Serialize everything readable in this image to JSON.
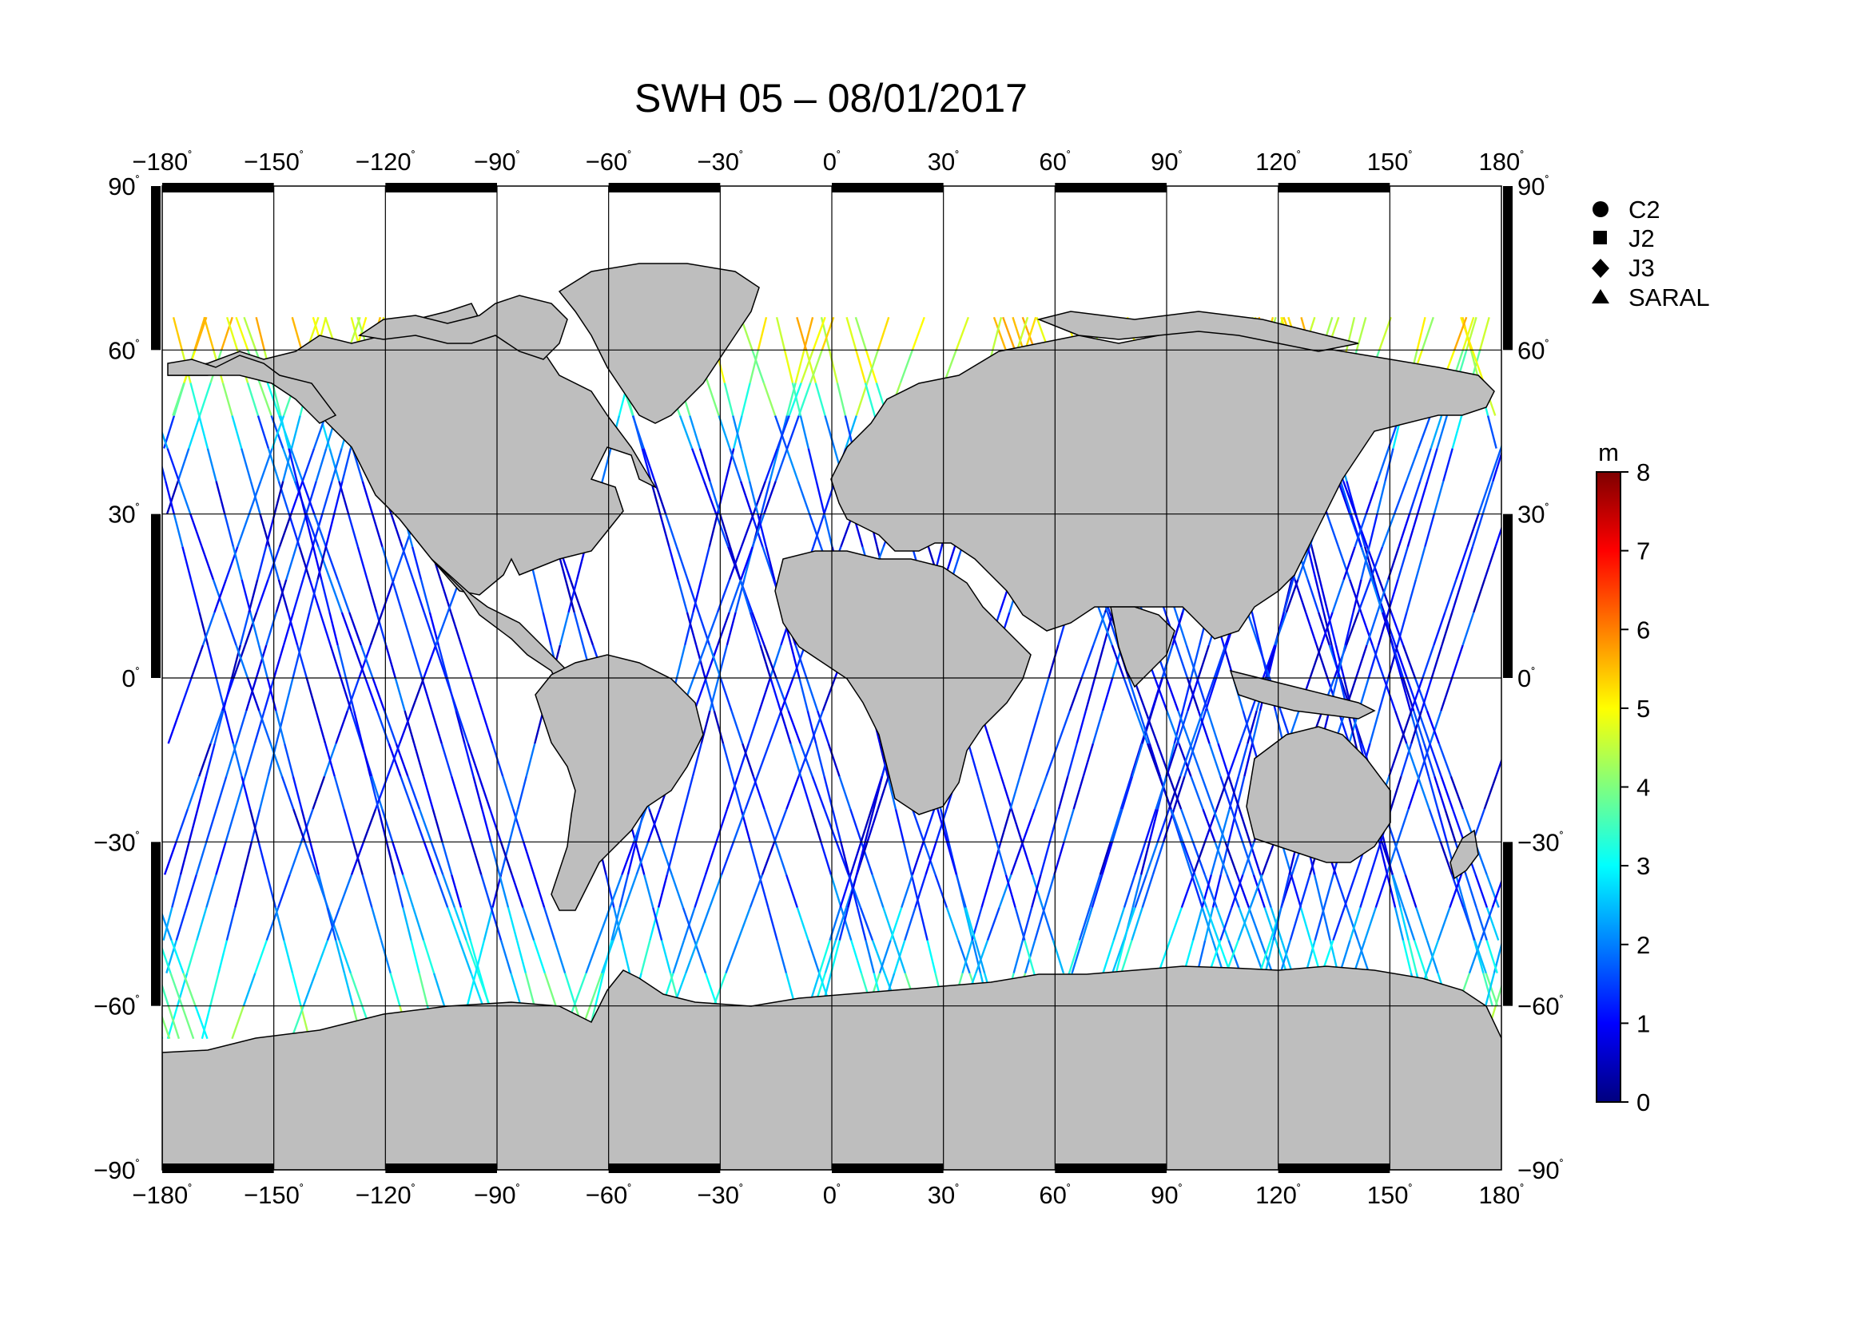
{
  "title": "SWH 05 – 08/01/2017",
  "lon_ticks": [
    "−180",
    "−150",
    "−120",
    "−90",
    "−60",
    "−30",
    "0",
    "30",
    "60",
    "90",
    "120",
    "150",
    "180"
  ],
  "lat_ticks_left": [
    "90",
    "60",
    "30",
    "0",
    "−30",
    "−60",
    "−90"
  ],
  "lat_ticks_right": [
    "90",
    "60",
    "30",
    "0",
    "−30",
    "−60",
    "−90"
  ],
  "degree_symbol": "˚",
  "legend": [
    {
      "marker": "circle",
      "label": "C2"
    },
    {
      "marker": "square",
      "label": "J2"
    },
    {
      "marker": "diamond",
      "label": "J3"
    },
    {
      "marker": "triangle",
      "label": "SARAL"
    }
  ],
  "colorbar": {
    "unit": "m",
    "min": 0,
    "max": 8,
    "labels": [
      "8",
      "7",
      "6",
      "5",
      "4",
      "3",
      "2",
      "1",
      "0"
    ],
    "colormap": "jet",
    "colors": [
      "#00007f",
      "#0000ff",
      "#007fff",
      "#00ffff",
      "#7fff7f",
      "#ffff00",
      "#ff7f00",
      "#ff0000",
      "#7f0000"
    ]
  },
  "map": {
    "projection": "equirectangular",
    "lon_range": [
      -180,
      180
    ],
    "lat_range": [
      -90,
      90
    ],
    "grid_step_deg": 30,
    "land_color": "#bebebe",
    "ocean_color": "#ffffff"
  }
}
